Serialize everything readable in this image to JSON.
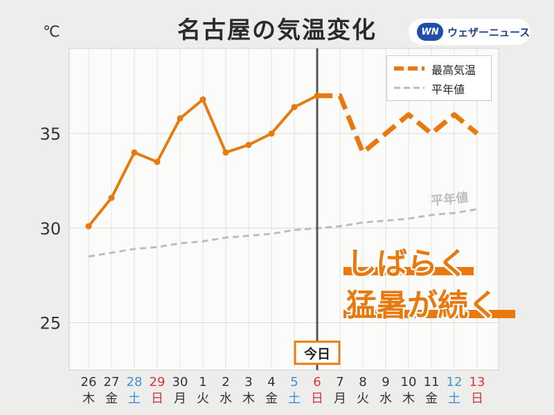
{
  "title": "名古屋の気温変化",
  "unit": "℃",
  "brand": {
    "logo": "WN",
    "name": "ウェザーニュース"
  },
  "today_label": "今日",
  "annotation": {
    "line1": "しばらく",
    "line2": "猛暑が続く"
  },
  "colors": {
    "max": "#e8790f",
    "normal": "#bdbdbd",
    "sat": "#3a8fd6",
    "sun": "#d9333a",
    "weekday": "#333333"
  },
  "chart_data": {
    "type": "line",
    "ylim": [
      22.5,
      39.5
    ],
    "yticks": [
      25,
      30,
      35
    ],
    "days": [
      "26",
      "27",
      "28",
      "29",
      "30",
      "1",
      "2",
      "3",
      "4",
      "5",
      "6",
      "7",
      "8",
      "9",
      "10",
      "11",
      "12",
      "13"
    ],
    "weekdays": [
      "木",
      "金",
      "土",
      "日",
      "月",
      "火",
      "水",
      "木",
      "金",
      "土",
      "日",
      "月",
      "火",
      "水",
      "木",
      "金",
      "土",
      "日"
    ],
    "day_types": [
      "w",
      "w",
      "sat",
      "sun",
      "w",
      "w",
      "w",
      "w",
      "w",
      "sat",
      "sun",
      "w",
      "w",
      "w",
      "w",
      "w",
      "sat",
      "sun"
    ],
    "today_index": 10,
    "series": [
      {
        "name": "最高気温",
        "values": [
          30.1,
          31.6,
          34.0,
          33.5,
          35.8,
          36.8,
          34.0,
          34.4,
          35.0,
          36.4,
          37.0,
          37.0,
          34.0,
          35.0,
          36.0,
          35.0,
          36.0,
          35.0
        ]
      },
      {
        "name": "平年値",
        "values": [
          28.5,
          28.7,
          28.9,
          29.0,
          29.2,
          29.3,
          29.5,
          29.6,
          29.7,
          29.9,
          30.0,
          30.1,
          30.3,
          30.4,
          30.5,
          30.7,
          30.8,
          31.0
        ]
      }
    ],
    "normal_label": "平年値"
  }
}
